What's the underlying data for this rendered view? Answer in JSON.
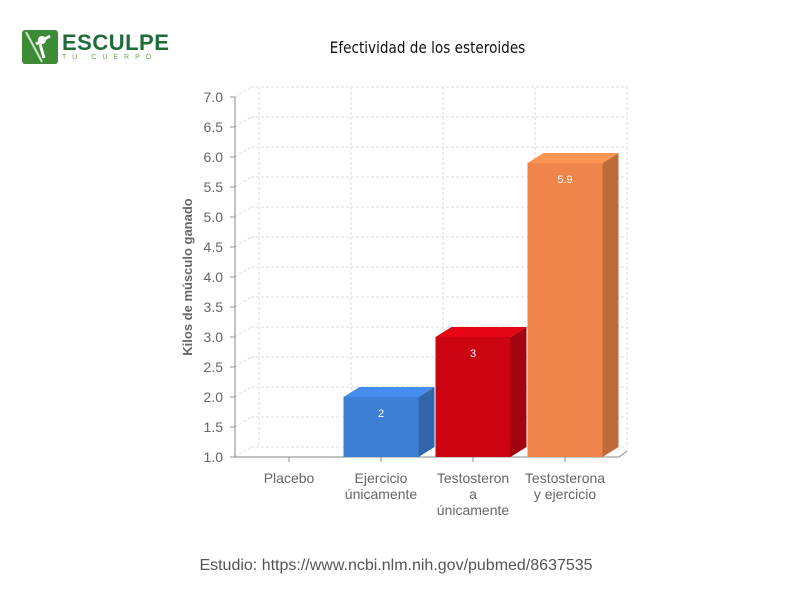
{
  "logo": {
    "name": "ESCULPE",
    "tagline": "TU CUERPO"
  },
  "chart_data": {
    "type": "bar",
    "title": "Efectividad de los esteroides",
    "ylabel": "Kilos de músculo ganado",
    "xlabel": "",
    "ylim": [
      1.0,
      7.0
    ],
    "yticks": [
      "1.0",
      "1.5",
      "2.0",
      "2.5",
      "3.0",
      "3.5",
      "4.0",
      "4.5",
      "5.0",
      "5.5",
      "6.0",
      "6.5",
      "7.0"
    ],
    "categories": [
      [
        "Placebo"
      ],
      [
        "Ejercicio",
        "únicamente"
      ],
      [
        "Testosteron",
        "a",
        "únicamente"
      ],
      [
        "Testosterona",
        "y ejercicio"
      ]
    ],
    "values": [
      1.0,
      2,
      3,
      5.9
    ],
    "data_labels": [
      "",
      "2",
      "3",
      "5.9"
    ],
    "colors": [
      "#ffffff",
      "#3e7fd6",
      "#cc0412",
      "#ef854a"
    ],
    "grid": true
  },
  "footer": {
    "source": "Estudio: https://www.ncbi.nlm.nih.gov/pubmed/8637535"
  }
}
